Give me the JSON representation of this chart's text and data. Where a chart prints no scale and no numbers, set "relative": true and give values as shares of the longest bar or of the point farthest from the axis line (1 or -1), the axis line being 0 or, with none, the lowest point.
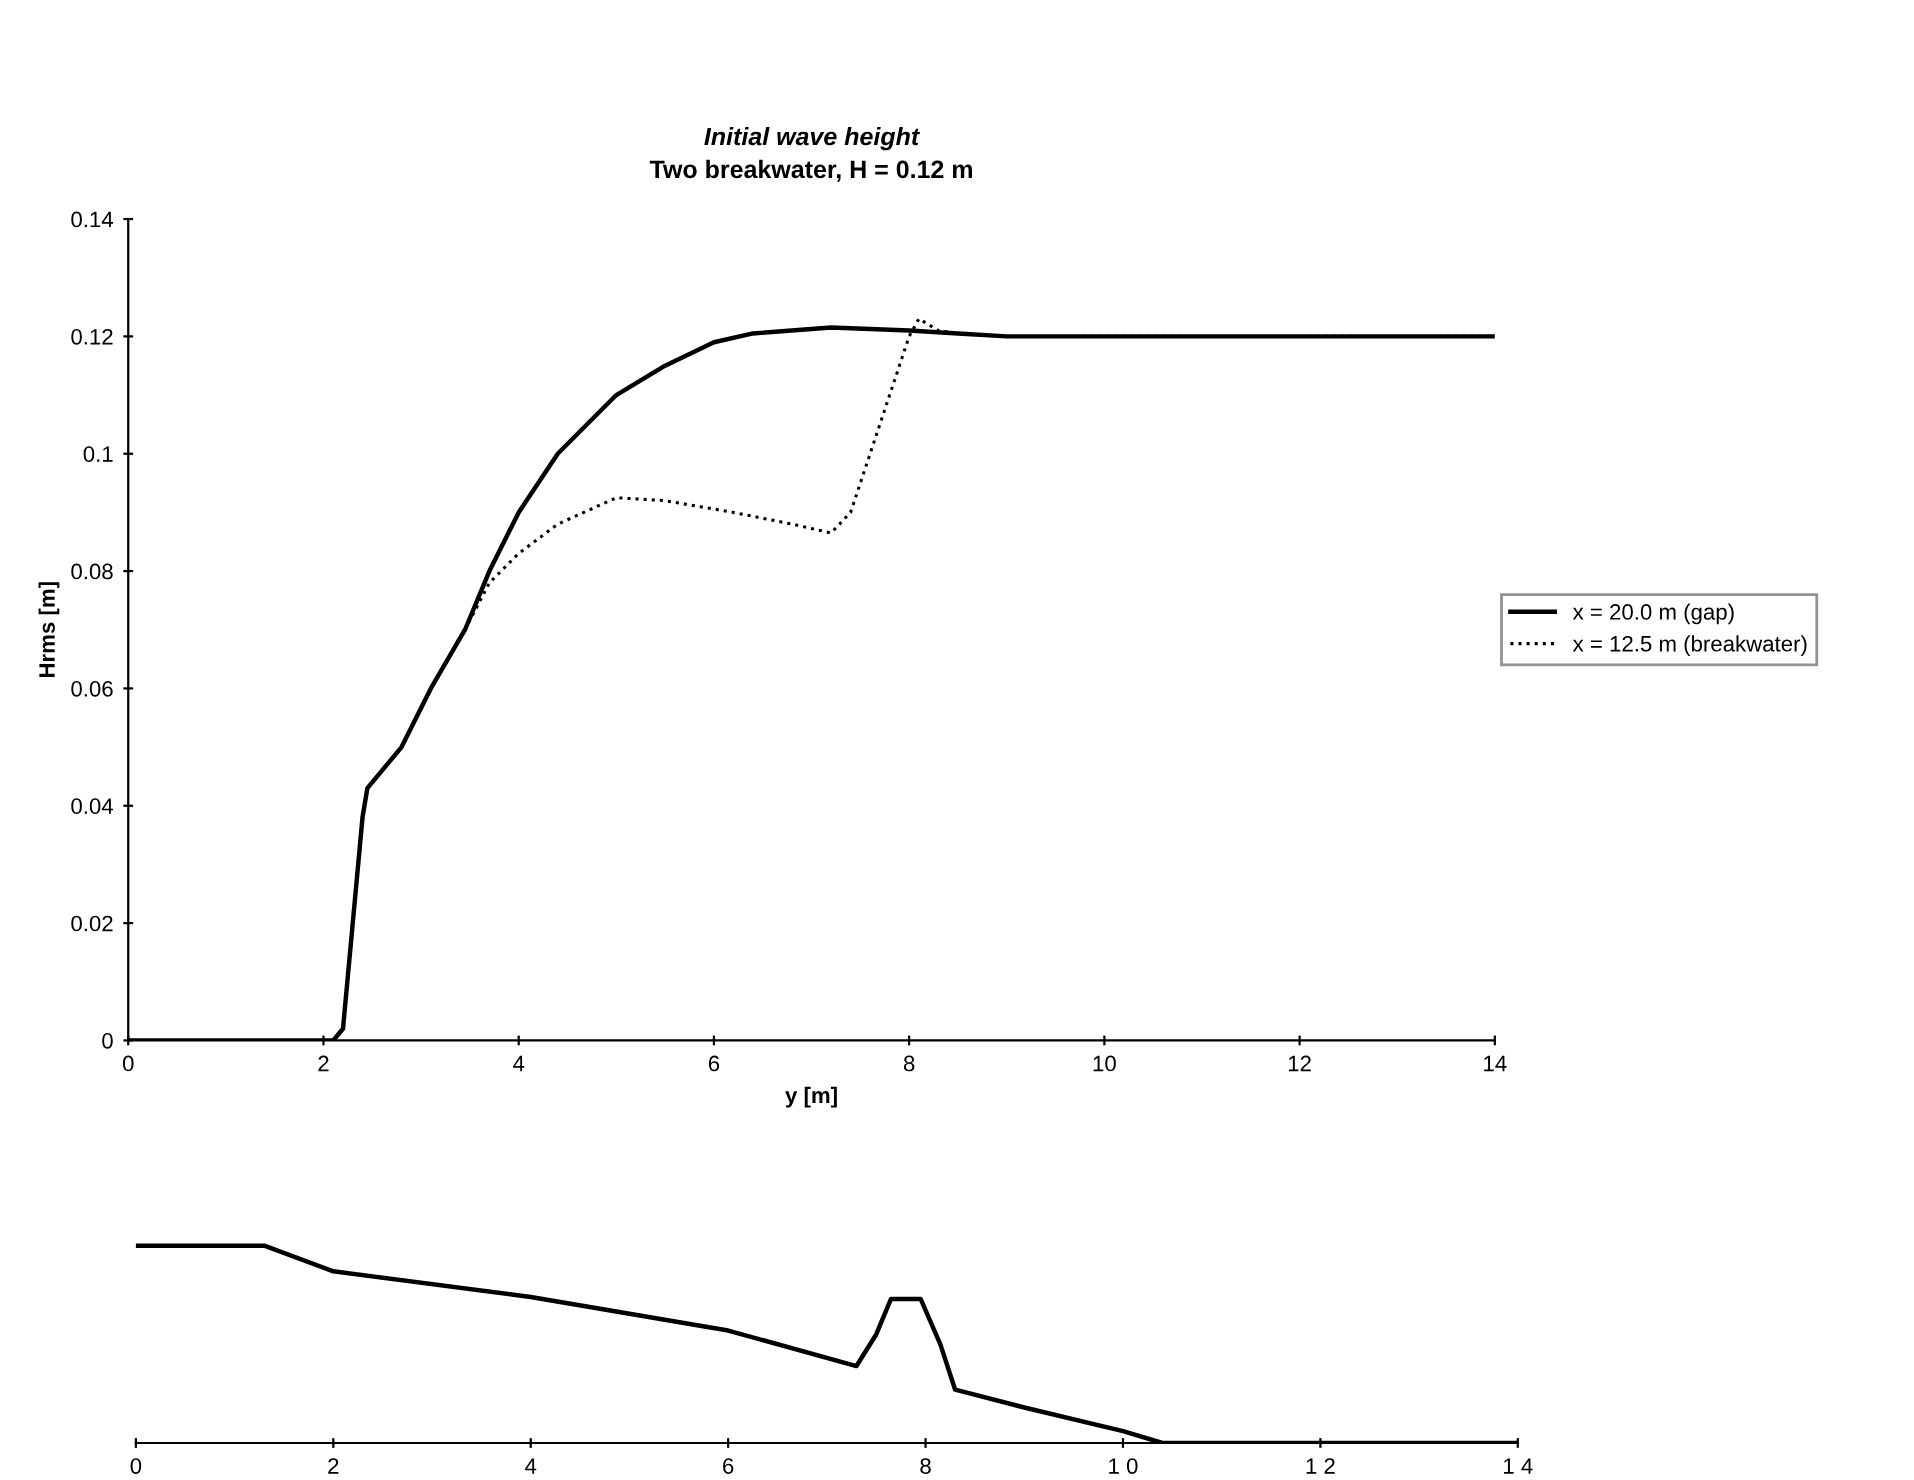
{
  "chart_data": [
    {
      "type": "line",
      "title": "Initial wave height",
      "subtitle": "Two breakwater, H = 0.12 m",
      "xlabel": "y [m]",
      "ylabel": "Hrms [m]",
      "xlim": [
        0,
        14
      ],
      "xticks": [
        0,
        2,
        4,
        6,
        8,
        10,
        12,
        14
      ],
      "ylim": [
        0,
        0.14
      ],
      "yticks": [
        0,
        0.02,
        0.04,
        0.06,
        0.08,
        0.1,
        0.12,
        0.14
      ],
      "grid": false,
      "legend": "right",
      "series": [
        {
          "name": "x = 20.0 m (gap)",
          "color": "#000000",
          "line_style": "solid",
          "x": [
            0,
            2.1,
            2.2,
            2.3,
            2.4,
            2.45,
            2.8,
            3.1,
            3.45,
            3.7,
            4.0,
            4.4,
            5.0,
            5.5,
            6.0,
            6.4,
            7.2,
            8.0,
            8.5,
            9.0,
            10,
            12,
            14
          ],
          "values": [
            0,
            0,
            0.002,
            0.02,
            0.038,
            0.043,
            0.05,
            0.06,
            0.07,
            0.08,
            0.09,
            0.1,
            0.11,
            0.115,
            0.119,
            0.1205,
            0.1215,
            0.121,
            0.1205,
            0.12,
            0.12,
            0.12,
            0.12
          ]
        },
        {
          "name": "x = 12.5 m (breakwater)",
          "color": "#000000",
          "line_style": "dotted",
          "x": [
            3.45,
            3.7,
            4.0,
            4.4,
            5.0,
            5.5,
            6.2,
            6.8,
            7.2,
            7.4,
            7.6,
            7.8,
            8.0,
            8.1,
            8.3,
            8.5,
            9.0,
            10,
            12,
            14
          ],
          "values": [
            0.07,
            0.078,
            0.083,
            0.088,
            0.0925,
            0.092,
            0.09,
            0.088,
            0.0865,
            0.09,
            0.1,
            0.11,
            0.12,
            0.123,
            0.121,
            0.1205,
            0.12,
            0.12,
            0.12,
            0.12
          ]
        }
      ]
    },
    {
      "type": "line",
      "relative": true,
      "tick_labels": "x",
      "xlim": [
        0,
        14
      ],
      "xticks": [
        0,
        2,
        4,
        6,
        8,
        {
          "value": 10,
          "label": "1 0"
        },
        {
          "value": 12,
          "label": "1 2"
        },
        {
          "value": 14,
          "label": "1 4"
        }
      ],
      "grid": false,
      "series": [
        {
          "color": "#000000",
          "line_style": "solid",
          "x": [
            0,
            1.3,
            2,
            4,
            6,
            7.3,
            7.5,
            7.65,
            7.95,
            8.15,
            8.3,
            9,
            10,
            10.4,
            14
          ],
          "values": [
            1,
            1,
            0.87,
            0.74,
            0.57,
            0.39,
            0.55,
            0.73,
            0.73,
            0.5,
            0.27,
            0.18,
            0.06,
            0,
            0
          ]
        }
      ]
    }
  ]
}
